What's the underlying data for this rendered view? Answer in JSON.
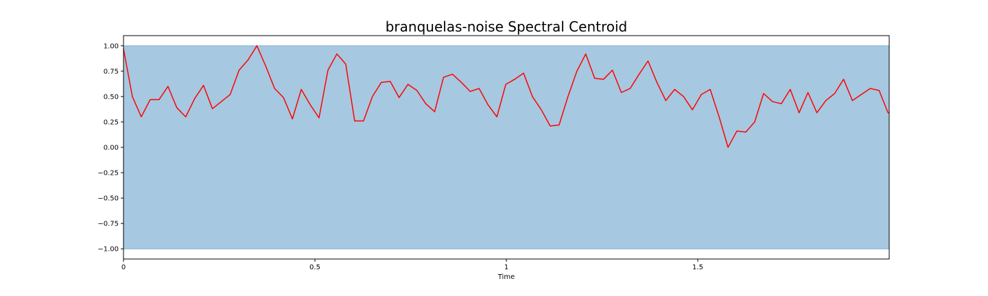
{
  "chart_data": {
    "type": "line",
    "title": "branquelas-noise Spectral Centroid",
    "xlabel": "Time",
    "ylabel": "",
    "xlim": [
      0,
      2.0
    ],
    "ylim": [
      -1.1,
      1.1
    ],
    "x_ticks": [
      {
        "value": 0,
        "label": "0"
      },
      {
        "value": 0.5,
        "label": "0.5"
      },
      {
        "value": 1.0,
        "label": "1"
      },
      {
        "value": 1.5,
        "label": "1.5"
      }
    ],
    "y_ticks": [
      {
        "value": 1.0,
        "label": "1.00"
      },
      {
        "value": 0.75,
        "label": "0.75"
      },
      {
        "value": 0.5,
        "label": "0.50"
      },
      {
        "value": 0.25,
        "label": "0.25"
      },
      {
        "value": 0.0,
        "label": "0.00"
      },
      {
        "value": -0.25,
        "label": "−0.25"
      },
      {
        "value": -0.5,
        "label": "−0.50"
      },
      {
        "value": -0.75,
        "label": "−0.75"
      },
      {
        "value": -1.0,
        "label": "−1.00"
      }
    ],
    "grid": false,
    "waveform_band": {
      "ymin": -1.0,
      "ymax": 1.0,
      "x_start": 0,
      "x_end": 2.0,
      "color": "#a6c8e0",
      "edge_color": "#7faed1"
    },
    "series": [
      {
        "color": "#ff0000",
        "x": [
          0.0,
          0.0232,
          0.0464,
          0.0697,
          0.0929,
          0.1161,
          0.1393,
          0.1625,
          0.1858,
          0.209,
          0.2322,
          0.2554,
          0.2786,
          0.3019,
          0.3251,
          0.3483,
          0.3715,
          0.3947,
          0.418,
          0.4412,
          0.4644,
          0.4876,
          0.5108,
          0.5341,
          0.5573,
          0.5805,
          0.6037,
          0.6269,
          0.6502,
          0.6734,
          0.6966,
          0.7198,
          0.743,
          0.7663,
          0.7895,
          0.8127,
          0.8359,
          0.8591,
          0.8824,
          0.9056,
          0.9288,
          0.952,
          0.9752,
          0.9985,
          1.0217,
          1.0449,
          1.0681,
          1.0913,
          1.1146,
          1.1378,
          1.161,
          1.1842,
          1.2074,
          1.2307,
          1.2539,
          1.2771,
          1.3003,
          1.3235,
          1.3468,
          1.37,
          1.3932,
          1.4164,
          1.4396,
          1.4629,
          1.4861,
          1.5093,
          1.5325,
          1.5557,
          1.579,
          1.6022,
          1.6254,
          1.6486,
          1.6718,
          1.6951,
          1.7183,
          1.7415,
          1.7647,
          1.7879,
          1.8112,
          1.8344,
          1.8576,
          1.8808,
          1.904,
          1.9273,
          1.9505,
          1.9737,
          1.9969,
          2.0
        ],
        "y": [
          0.97,
          0.5,
          0.3,
          0.47,
          0.47,
          0.6,
          0.39,
          0.3,
          0.48,
          0.61,
          0.38,
          0.45,
          0.52,
          0.76,
          0.86,
          1.0,
          0.8,
          0.58,
          0.49,
          0.28,
          0.57,
          0.42,
          0.29,
          0.76,
          0.92,
          0.82,
          0.26,
          0.26,
          0.5,
          0.64,
          0.65,
          0.49,
          0.62,
          0.56,
          0.43,
          0.35,
          0.69,
          0.72,
          0.64,
          0.55,
          0.58,
          0.42,
          0.3,
          0.62,
          0.67,
          0.73,
          0.5,
          0.37,
          0.21,
          0.22,
          0.5,
          0.75,
          0.92,
          0.68,
          0.67,
          0.76,
          0.54,
          0.58,
          0.72,
          0.85,
          0.64,
          0.46,
          0.57,
          0.5,
          0.37,
          0.52,
          0.57,
          0.3,
          0.0,
          0.16,
          0.15,
          0.25,
          0.53,
          0.45,
          0.43,
          0.57,
          0.34,
          0.54,
          0.34,
          0.46,
          0.53,
          0.67,
          0.46,
          0.52,
          0.58,
          0.56,
          0.34,
          0.34
        ]
      }
    ]
  }
}
